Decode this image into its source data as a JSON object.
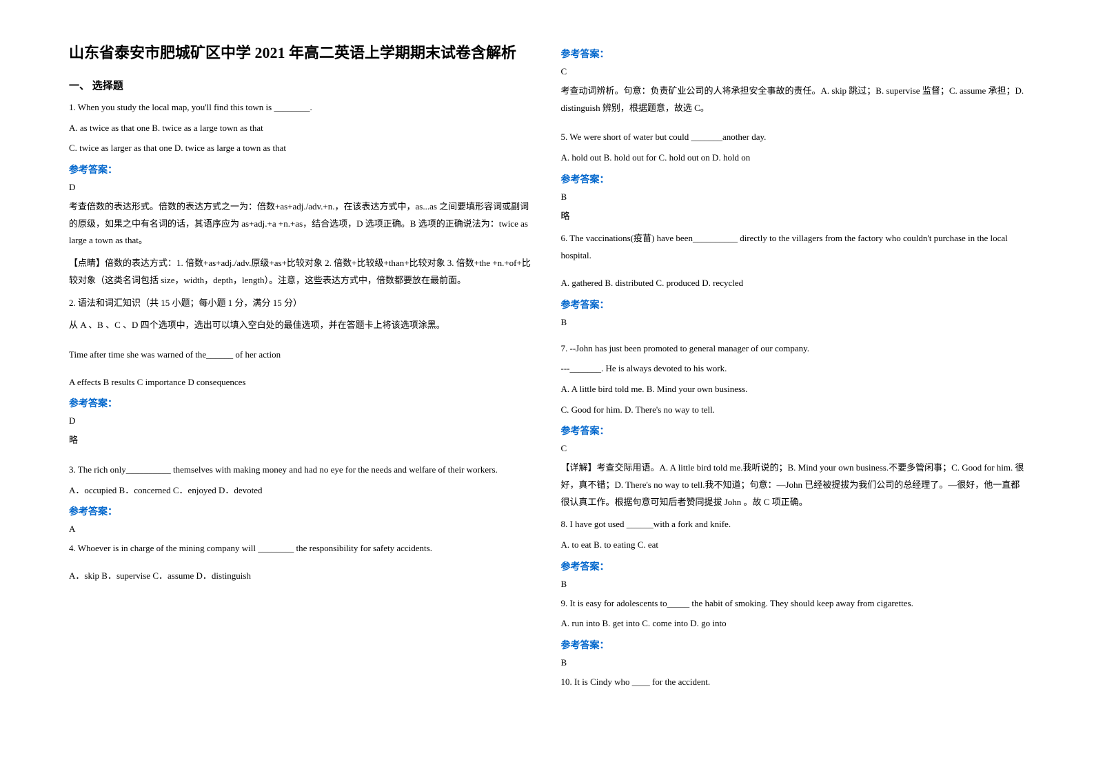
{
  "title": "山东省泰安市肥城矿区中学 2021 年高二英语上学期期末试卷含解析",
  "section1_header": "一、 选择题",
  "answer_label": "参考答案：",
  "q1": {
    "text": "1. When you study the local map, you'll find this town is ________.",
    "optA": "A. as twice as that one    B. twice as a large town as that",
    "optC": "C. twice as larger as that one    D. twice as large a town as that",
    "answer": "D",
    "exp1": "考查倍数的表达形式。倍数的表达方式之一为：倍数+as+adj./adv.+n.，在该表达方式中，as...as 之间要填形容词或副词的原级，如果之中有名词的话，其语序应为 as+adj.+a +n.+as，结合选项，D 选项正确。B 选项的正确说法为：twice as large a town as that。",
    "exp2": "【点睛】倍数的表达方式：1. 倍数+as+adj./adv.原级+as+比较对象     2. 倍数+比较级+than+比较对象    3. 倍数+the +n.+of+比较对象（这类名词包括 size，width，depth，length）。注意，这些表达方式中，倍数都要放在最前面。"
  },
  "q2": {
    "text": "2. 语法和词汇知识（共 15 小题；每小题 1 分，满分 15 分）",
    "instr": "从 A 、B 、C 、D 四个选项中，选出可以填入空白处的最佳选项，并在答题卡上将该选项涂黑。",
    "stem": " Time after time she was warned of the______ of her action",
    "opts": "A   effects   B   results   C   importance   D   consequences",
    "answer": "D",
    "exp": " 略"
  },
  "q3": {
    "text": "3. The rich only__________ themselves with making money and had no eye for the needs and welfare of their workers.",
    "opts": "    A．occupied   B．concerned     C．enjoyed       D．devoted",
    "answer": "A"
  },
  "q4": {
    "text": "4. Whoever is in charge of the mining company will ________ the responsibility for safety accidents.",
    "opts": "A．skip   B．supervise         C．assume   D．distinguish",
    "answer": "C",
    "exp": "考查动词辨析。句意：负责矿业公司的人将承担安全事故的责任。A. skip 跳过；B. supervise 监督；C. assume 承担；D. distinguish 辨别，根据题意，故选 C。"
  },
  "q5": {
    "text": "5. We were short of water but could _______another day.",
    "opts": " A. hold out   B. hold out for   C. hold out on   D. hold on",
    "answer": "B",
    "exp": "略"
  },
  "q6": {
    "text": "6. The vaccinations(疫苗) have been__________ directly to the villagers from the factory who couldn't purchase in the local hospital.",
    "opts": "  A. gathered             B. distributed             C. produced                D. recycled",
    "answer": "B"
  },
  "q7": {
    "text1": "7. --John has just been promoted to general manager of our company.",
    "text2": "---_______. He is always devoted to his work.",
    "optA": "A. A little bird told me.   B. Mind your own business.",
    "optC": "C. Good for him.   D. There's no way to tell.",
    "answer": "C",
    "exp": "【详解】考查交际用语。A. A little bird told me.我听说的；B. Mind your own business.不要多管闲事；C. Good for him. 很好，真不错；D. There's no way to tell.我不知道；句意：—John 已经被提拔为我们公司的总经理了。—很好，他一直都很认真工作。根据句意可知后者赞同提拔 John 。故 C 项正确。"
  },
  "q8": {
    "text": "8. I have got used ______with a fork and knife.",
    "opts": "      A. to eat        B. to eating        C. eat",
    "answer": "B"
  },
  "q9": {
    "text": "9. It is easy for adolescents to_____  the habit of smoking. They should keep away from cigarettes.",
    "opts": "  A. run into                         B.       get into                             C.     come into              D. go into",
    "answer": "B"
  },
  "q10": {
    "text": "10. It is Cindy who ____ for the accident."
  }
}
